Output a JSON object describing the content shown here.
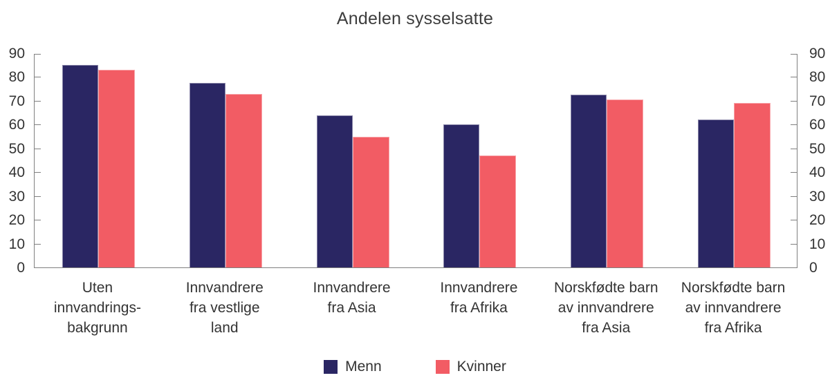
{
  "colors": {
    "menn": "#2a2663",
    "kvinner": "#f25c64",
    "axis": "#7f7f7f",
    "text": "#333333",
    "title": "#3d3d3d"
  },
  "chart_data": {
    "type": "bar",
    "title": "Andelen sysselsatte",
    "categories": [
      "Uten innvandringsbakgrunn",
      "Innvandrere fra vestlige land",
      "Innvandrere fra Asia",
      "Innvandrere fra Afrika",
      "Norskfødte barn av innvandrere fra Asia",
      "Norskfødte barn av innvandrere fra Afrika"
    ],
    "categories_lines": [
      [
        "Uten",
        "innvandrings-",
        "bakgrunn"
      ],
      [
        "Innvandrere",
        "fra vestlige",
        "land"
      ],
      [
        "Innvandrere",
        "fra Asia"
      ],
      [
        "Innvandrere",
        "fra Afrika"
      ],
      [
        "Norskfødte barn",
        "av innvandrere",
        "fra Asia"
      ],
      [
        "Norskfødte barn",
        "av innvandrere",
        "fra Afrika"
      ]
    ],
    "series": [
      {
        "name": "Menn",
        "color": "#2a2663",
        "values": [
          85,
          77.5,
          64,
          60,
          72.5,
          62
        ]
      },
      {
        "name": "Kvinner",
        "color": "#f25c64",
        "values": [
          83,
          73,
          55,
          47,
          70.5,
          69
        ]
      }
    ],
    "xlabel": "",
    "ylabel": "",
    "ylim": [
      0,
      90
    ],
    "yticks": [
      0,
      10,
      20,
      30,
      40,
      50,
      60,
      70,
      80,
      90
    ],
    "dual_y_axis": true,
    "grid": false,
    "legend_position": "bottom"
  }
}
